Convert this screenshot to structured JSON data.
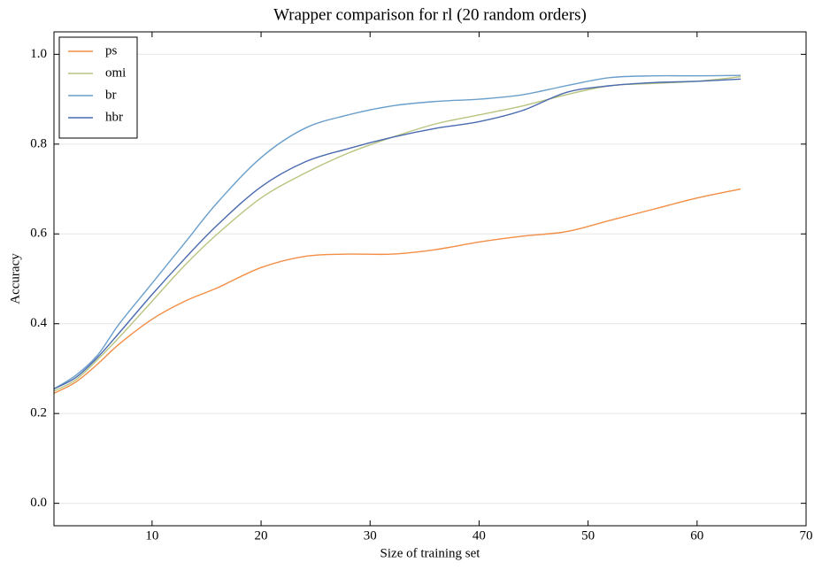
{
  "chart_data": {
    "type": "line",
    "title": "Wrapper comparison for rl (20 random orders)",
    "xlabel": "Size of training set",
    "ylabel": "Accuracy",
    "x": [
      1,
      3,
      5,
      7,
      10,
      13,
      16,
      20,
      24,
      28,
      32,
      36,
      40,
      44,
      48,
      52,
      56,
      60,
      64
    ],
    "series": [
      {
        "name": "ps",
        "color": "#f28e45",
        "values": [
          0.245,
          0.27,
          0.31,
          0.355,
          0.41,
          0.45,
          0.48,
          0.525,
          0.55,
          0.555,
          0.555,
          0.565,
          0.582,
          0.595,
          0.605,
          0.63,
          0.655,
          0.68,
          0.7
        ]
      },
      {
        "name": "omi",
        "color": "#b8c47f",
        "values": [
          0.25,
          0.275,
          0.32,
          0.37,
          0.45,
          0.53,
          0.6,
          0.68,
          0.735,
          0.78,
          0.815,
          0.845,
          0.865,
          0.885,
          0.91,
          0.93,
          0.935,
          0.94,
          0.95
        ]
      },
      {
        "name": "br",
        "color": "#6a9fcb",
        "values": [
          0.255,
          0.285,
          0.33,
          0.4,
          0.49,
          0.58,
          0.67,
          0.77,
          0.835,
          0.865,
          0.885,
          0.895,
          0.9,
          0.91,
          0.93,
          0.948,
          0.952,
          0.952,
          0.953
        ]
      },
      {
        "name": "hbr",
        "color": "#4a6bb0",
        "values": [
          0.255,
          0.28,
          0.325,
          0.38,
          0.465,
          0.545,
          0.62,
          0.705,
          0.76,
          0.79,
          0.815,
          0.835,
          0.85,
          0.875,
          0.915,
          0.93,
          0.937,
          0.94,
          0.945
        ]
      }
    ],
    "xlim": [
      1,
      70
    ],
    "xticks": [
      10,
      20,
      30,
      40,
      50,
      60,
      70
    ],
    "ylim": [
      -0.05,
      1.05
    ],
    "yticks": [
      {
        "value": 0,
        "label": "0.0"
      },
      0.2,
      0.4,
      0.6,
      0.8,
      {
        "value": 1,
        "label": "1.0"
      }
    ],
    "grid": true,
    "legend": "upper left"
  }
}
